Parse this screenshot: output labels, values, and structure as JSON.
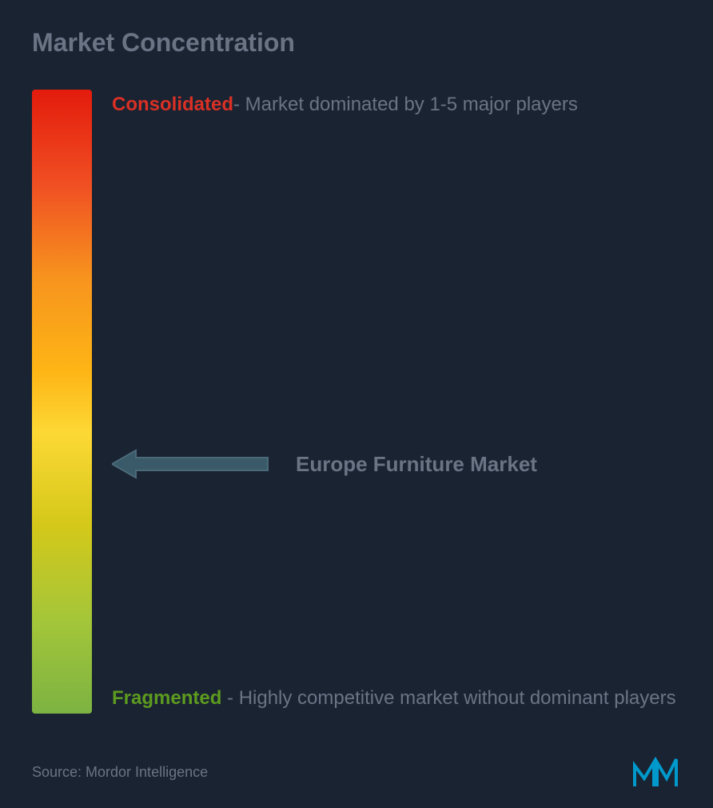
{
  "title": "Market Concentration",
  "gradient": {
    "colors": [
      "#e31b0c",
      "#f04e23",
      "#f7931e",
      "#fdb515",
      "#fdd835",
      "#d4c81a",
      "#a4c639",
      "#7cb342"
    ],
    "stops": [
      0,
      15,
      30,
      45,
      55,
      70,
      85,
      100
    ]
  },
  "consolidated": {
    "label": "Consolidated",
    "label_color": "#d93025",
    "text": "- Market dominated by 1-5 major players"
  },
  "market_pointer": {
    "label": "Europe Furniture Market",
    "arrow_color": "#3a5a6a",
    "arrow_border": "#4a6a7a",
    "position_percent": 60
  },
  "fragmented": {
    "label": "Fragmented",
    "label_color": "#5d9b1f",
    "text": " - Highly competitive market without dominant players"
  },
  "footer": {
    "source": "Source: Mordor Intelligence",
    "logo_color": "#0099cc"
  },
  "background_color": "#1a2332",
  "text_color": "#6a7485"
}
